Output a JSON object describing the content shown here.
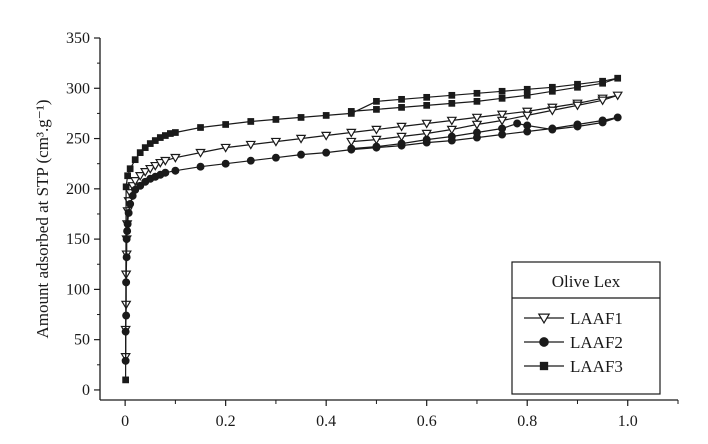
{
  "chart_data": {
    "type": "line",
    "title": "",
    "xlabel": "",
    "ylabel": "Amount adsorbed at STP (cm³.g⁻¹)",
    "xlim": [
      -0.05,
      1.1
    ],
    "ylim": [
      -10,
      350
    ],
    "x_ticks": [
      {
        "value": 0,
        "label": "0"
      },
      {
        "value": 0.2,
        "label": "0.2"
      },
      {
        "value": 0.4,
        "label": "0.4"
      },
      {
        "value": 0.6,
        "label": "0.6"
      },
      {
        "value": 0.8,
        "label": "0.8"
      },
      {
        "value": 1.0,
        "label": "1.0"
      }
    ],
    "y_ticks": [
      {
        "value": 0,
        "label": "0"
      },
      {
        "value": 50,
        "label": "50"
      },
      {
        "value": 100,
        "label": "100"
      },
      {
        "value": 150,
        "label": "150"
      },
      {
        "value": 200,
        "label": "200"
      },
      {
        "value": 250,
        "label": "250"
      },
      {
        "value": 300,
        "label": "300"
      },
      {
        "value": 350,
        "label": "350"
      }
    ],
    "grid": false,
    "legend": {
      "title": "Olive Lex",
      "position": "bottom-right"
    },
    "series": [
      {
        "name": "LAAF1",
        "marker": "triangle-down-open",
        "color": "#1a1a1a",
        "x": [
          0.001,
          0.001,
          0.002,
          0.002,
          0.003,
          0.003,
          0.004,
          0.005,
          0.007,
          0.01,
          0.015,
          0.02,
          0.03,
          0.04,
          0.05,
          0.06,
          0.07,
          0.08,
          0.1,
          0.15,
          0.2,
          0.25,
          0.3,
          0.35,
          0.4,
          0.45,
          0.5,
          0.55,
          0.6,
          0.65,
          0.7,
          0.75,
          0.8,
          0.85,
          0.9,
          0.95,
          0.98,
          0.95,
          0.9,
          0.85,
          0.8,
          0.75,
          0.7,
          0.65,
          0.6,
          0.55,
          0.5,
          0.45
        ],
        "y": [
          33,
          60,
          85,
          115,
          135,
          150,
          165,
          178,
          188,
          196,
          203,
          208,
          213,
          217,
          220,
          223,
          226,
          228,
          231,
          236,
          241,
          244,
          247,
          250,
          253,
          256,
          259,
          262,
          265,
          268,
          271,
          274,
          277,
          281,
          285,
          290,
          293,
          288,
          283,
          278,
          273,
          268,
          264,
          259,
          255,
          252,
          249,
          247
        ]
      },
      {
        "name": "LAAF2",
        "marker": "circle-filled",
        "color": "#1a1a1a",
        "x": [
          0.001,
          0.001,
          0.002,
          0.002,
          0.003,
          0.003,
          0.004,
          0.005,
          0.007,
          0.01,
          0.015,
          0.02,
          0.03,
          0.04,
          0.05,
          0.06,
          0.07,
          0.08,
          0.1,
          0.15,
          0.2,
          0.25,
          0.3,
          0.35,
          0.4,
          0.45,
          0.5,
          0.55,
          0.6,
          0.65,
          0.7,
          0.75,
          0.8,
          0.85,
          0.9,
          0.95,
          0.98,
          0.95,
          0.9,
          0.85,
          0.8,
          0.78,
          0.75,
          0.7,
          0.65,
          0.6,
          0.55,
          0.5,
          0.45
        ],
        "y": [
          29,
          58,
          74,
          107,
          132,
          150,
          158,
          165,
          176,
          185,
          193,
          199,
          203,
          207,
          210,
          212,
          214,
          216,
          218,
          222,
          225,
          228,
          231,
          234,
          236,
          239,
          241,
          243,
          246,
          248,
          251,
          254,
          257,
          260,
          264,
          268,
          271,
          266,
          262,
          259,
          263,
          265,
          260,
          256,
          252,
          249,
          245,
          242,
          240
        ]
      },
      {
        "name": "LAAF3",
        "marker": "square-filled",
        "color": "#1a1a1a",
        "x": [
          0.001,
          0.002,
          0.005,
          0.01,
          0.02,
          0.03,
          0.04,
          0.05,
          0.06,
          0.07,
          0.08,
          0.09,
          0.1,
          0.15,
          0.2,
          0.25,
          0.3,
          0.35,
          0.4,
          0.45,
          0.5,
          0.55,
          0.6,
          0.65,
          0.7,
          0.75,
          0.8,
          0.85,
          0.9,
          0.95,
          0.98,
          0.95,
          0.9,
          0.85,
          0.8,
          0.75,
          0.7,
          0.65,
          0.6,
          0.55,
          0.5,
          0.45
        ],
        "y": [
          10,
          202,
          213,
          220,
          229,
          236,
          241,
          245,
          248,
          251,
          253,
          255,
          256,
          261,
          264,
          267,
          269,
          271,
          273,
          275,
          287,
          289,
          291,
          293,
          295,
          297,
          299,
          301,
          304,
          307,
          310,
          305,
          301,
          297,
          293,
          290,
          287,
          285,
          283,
          281,
          279,
          277
        ]
      }
    ]
  }
}
